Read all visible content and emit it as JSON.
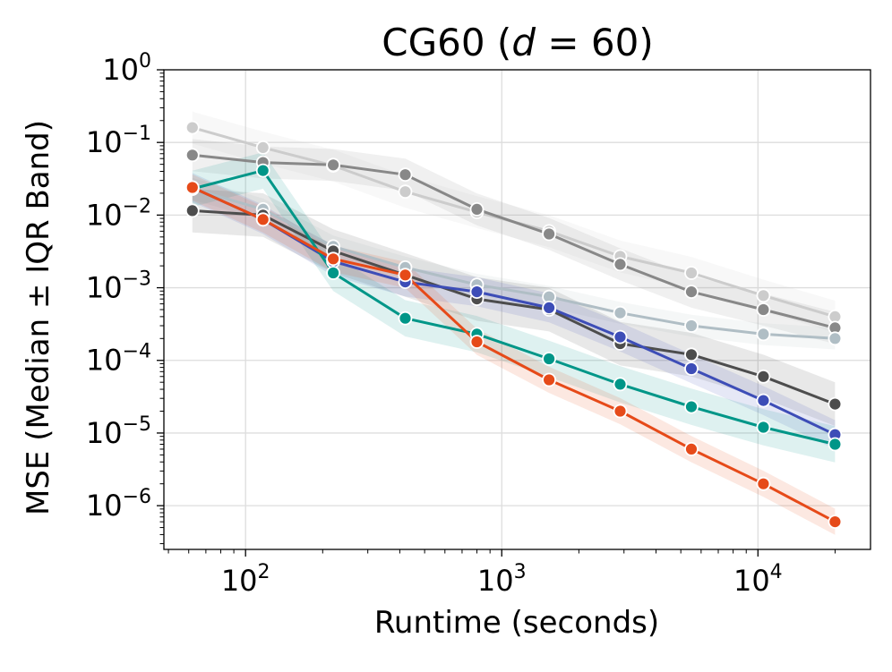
{
  "chart_data": {
    "type": "line",
    "title_prefix": "CG60 (",
    "title_var": "d",
    "title_eq": " = 60)",
    "xlabel": "Runtime (seconds)",
    "ylabel": "MSE (Median ± IQR Band)",
    "xscale": "log",
    "yscale": "log",
    "xlim": [
      48,
      27500
    ],
    "ylim": [
      2.5e-07,
      1.0
    ],
    "grid": true,
    "x_ticks": [
      {
        "value": 100,
        "base": "10",
        "exp": "2"
      },
      {
        "value": 1000,
        "base": "10",
        "exp": "3"
      },
      {
        "value": 10000,
        "base": "10",
        "exp": "4"
      }
    ],
    "y_ticks": [
      {
        "value": 1e-06,
        "base": "10",
        "exp": "−6"
      },
      {
        "value": 1e-05,
        "base": "10",
        "exp": "−5"
      },
      {
        "value": 0.0001,
        "base": "10",
        "exp": "−4"
      },
      {
        "value": 0.001,
        "base": "10",
        "exp": "−3"
      },
      {
        "value": 0.01,
        "base": "10",
        "exp": "−2"
      },
      {
        "value": 0.1,
        "base": "10",
        "exp": "−1"
      },
      {
        "value": 1,
        "base": "10",
        "exp": "0"
      }
    ],
    "x": [
      62,
      117,
      220,
      420,
      800,
      1530,
      2900,
      5500,
      10500,
      20000
    ],
    "series": [
      {
        "color": "#cccccc",
        "band": 0.22,
        "values": [
          0.16,
          0.085,
          0.048,
          0.021,
          0.011,
          0.006,
          0.0027,
          0.0016,
          0.00078,
          0.0004
        ]
      },
      {
        "color": "#888888",
        "band": 0.22,
        "values": [
          0.067,
          0.053,
          0.049,
          0.036,
          0.012,
          0.0055,
          0.0021,
          0.00088,
          0.0005,
          0.00028
        ]
      },
      {
        "color": "#b0bec5",
        "band": 0.15,
        "values": [
          0.023,
          0.012,
          0.0037,
          0.0019,
          0.0011,
          0.00075,
          0.00045,
          0.0003,
          0.00023,
          0.0002
        ]
      },
      {
        "color": "#4d4d4d",
        "band": 0.3,
        "values": [
          0.0115,
          0.01,
          0.0032,
          0.0015,
          0.0007,
          0.0005,
          0.00017,
          0.00012,
          6e-05,
          2.5e-05
        ]
      },
      {
        "color": "#3d4db7",
        "band": 0.2,
        "values": [
          0.024,
          0.0087,
          0.0023,
          0.0012,
          0.00088,
          0.00053,
          0.00021,
          7.7e-05,
          2.8e-05,
          9.5e-06
        ]
      },
      {
        "color": "#009688",
        "band": 0.25,
        "values": [
          0.023,
          0.041,
          0.0016,
          0.00038,
          0.00023,
          0.000105,
          4.7e-05,
          2.3e-05,
          1.2e-05,
          7e-06
        ]
      },
      {
        "color": "#e64a19",
        "band": 0.18,
        "values": [
          0.024,
          0.0087,
          0.0025,
          0.0015,
          0.00018,
          5.4e-05,
          2e-05,
          6e-06,
          2e-06,
          6e-07
        ]
      }
    ]
  }
}
